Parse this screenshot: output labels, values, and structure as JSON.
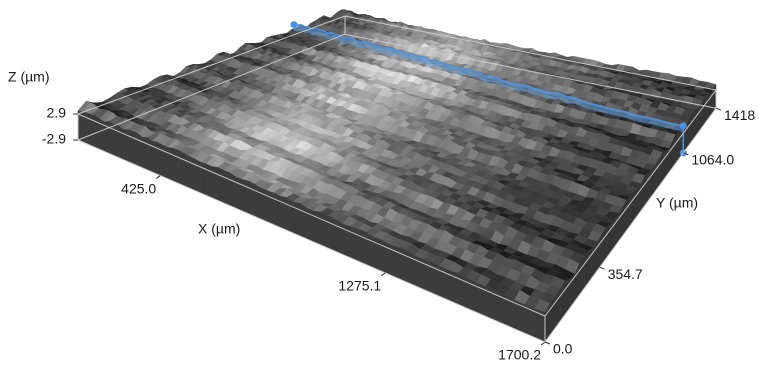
{
  "chart_data": {
    "type": "surface3d",
    "xlabel": "X (µm)",
    "ylabel": "Y (µm)",
    "zlabel": "Z (µm)",
    "xlim": [
      0,
      1700.2
    ],
    "xticks": [
      {
        "value": 425,
        "label": "425.0"
      },
      {
        "value": 1275.1,
        "label": "1275.1"
      },
      {
        "value": 1700.2,
        "label": "1700.2"
      }
    ],
    "ylim": [
      0,
      1418
    ],
    "yticks": [
      {
        "value": 0,
        "label": "0.0"
      },
      354.7,
      {
        "value": 1064,
        "label": "1064.0"
      },
      1418
    ],
    "zlim": [
      -2.9,
      2.9
    ],
    "zticks": [
      2.9,
      -2.9
    ]
  }
}
